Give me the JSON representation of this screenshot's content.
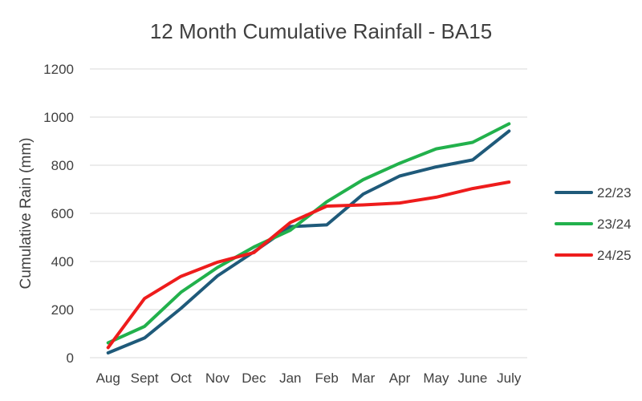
{
  "chart_data": {
    "type": "line",
    "title": "12 Month Cumulative Rainfall - BA15",
    "xlabel": "",
    "ylabel": "Cumulative Rain (mm)",
    "ylim": [
      0,
      1200
    ],
    "yticks": [
      "0",
      "200",
      "400",
      "600",
      "800",
      "1000",
      "1200"
    ],
    "grid": true,
    "legend_position": "right",
    "categories": [
      "Aug",
      "Sept",
      "Oct",
      "Nov",
      "Dec",
      "Jan",
      "Feb",
      "Mar",
      "Apr",
      "May",
      "June",
      "July"
    ],
    "series": [
      {
        "name": "22/23",
        "color": "#1f5a7a",
        "values": [
          20,
          82,
          205,
          340,
          440,
          545,
          552,
          680,
          755,
          793,
          822,
          942
        ]
      },
      {
        "name": "23/24",
        "color": "#22b14c",
        "values": [
          62,
          130,
          272,
          375,
          460,
          530,
          648,
          740,
          808,
          868,
          895,
          972
        ]
      },
      {
        "name": "24/25",
        "color": "#ee1c1c",
        "values": [
          42,
          246,
          338,
          397,
          437,
          562,
          630,
          635,
          643,
          667,
          703,
          730
        ]
      }
    ]
  }
}
